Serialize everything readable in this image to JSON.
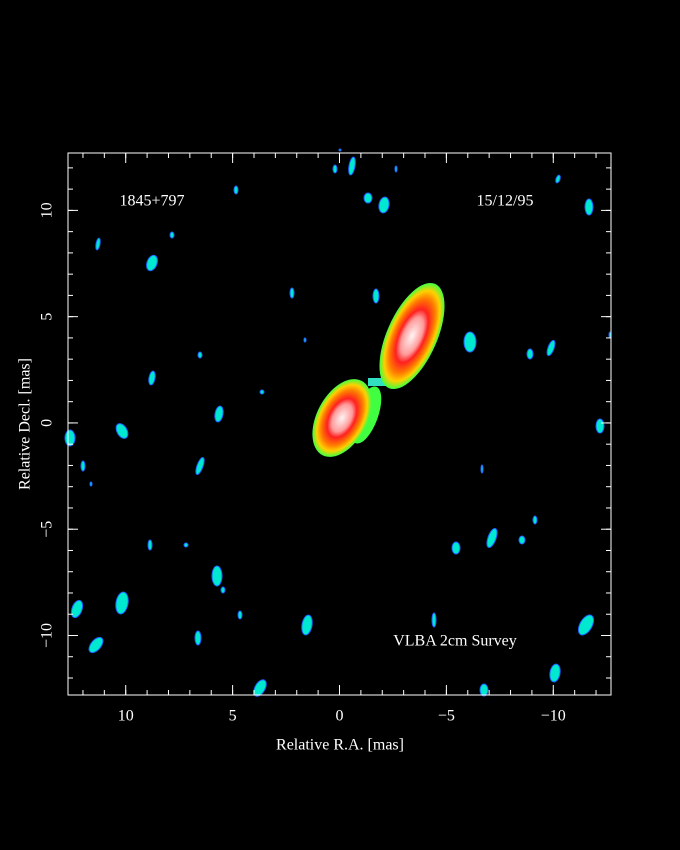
{
  "chart_data": {
    "type": "image",
    "source_label": "1845+797",
    "date_label": "15/12/95",
    "survey_label": "VLBA 2cm Survey",
    "xlabel": "Relative R.A. [mas]",
    "ylabel": "Relative Decl. [mas]",
    "xlim": [
      12.7,
      -12.7
    ],
    "ylim": [
      -12.8,
      12.7
    ],
    "xticks": [
      10,
      5,
      0,
      {
        "value": -5,
        "label": "−5"
      },
      {
        "value": -10,
        "label": "−10"
      }
    ],
    "yticks": [
      {
        "value": -10,
        "label": "−10"
      },
      {
        "value": -5,
        "label": "−5"
      },
      0,
      5,
      10
    ]
  }
}
